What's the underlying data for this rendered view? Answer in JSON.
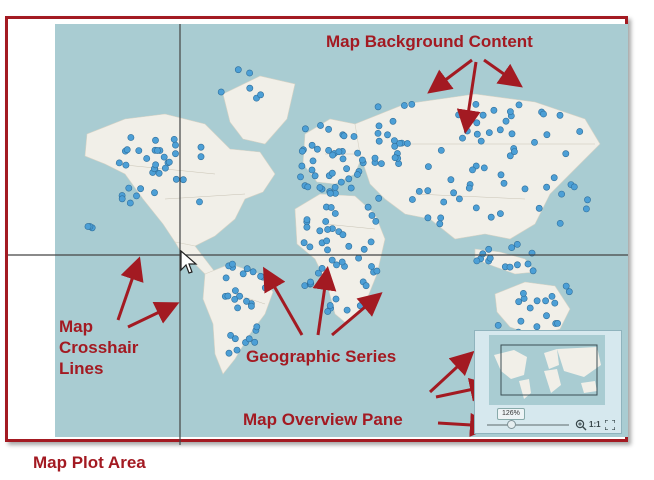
{
  "callouts": {
    "map_background_content": "Map Background Content",
    "map_crosshair_lines": "Map\nCrosshair\nLines",
    "geographic_series": "Geographic Series",
    "map_overview_pane": "Map Overview Pane",
    "map_plot_area": "Map Plot Area"
  },
  "overview": {
    "zoom_level": "126%",
    "one_to_one_label": "1:1"
  },
  "icons": {
    "zoom": "magnifier-plus-icon",
    "fit": "fit-to-window-icon",
    "cursor": "mouse-pointer-icon"
  },
  "colors": {
    "callout": "#a31a22",
    "water": "#a9ccd2",
    "land": "#f1efe8",
    "marker": "#4c9fd6",
    "crosshair": "#444444"
  }
}
